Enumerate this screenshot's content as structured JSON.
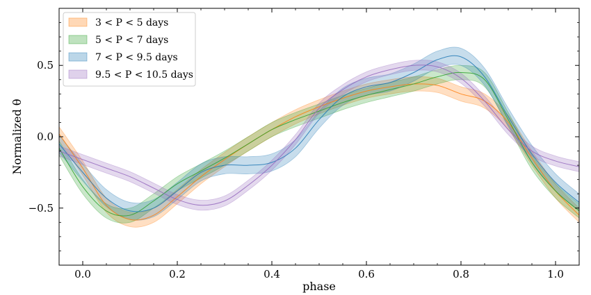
{
  "chart_data": {
    "type": "line",
    "xlabel": "phase",
    "ylabel": "Normalized θ",
    "xlim": [
      -0.05,
      1.05
    ],
    "ylim": [
      -0.9,
      0.9
    ],
    "xticks": [
      "0.0",
      "0.2",
      "0.4",
      "0.6",
      "0.8",
      "1.0"
    ],
    "yticks": [
      "−0.5",
      "0.0",
      "0.5"
    ],
    "grid": false,
    "legend_position": "top-left",
    "series": [
      {
        "name": "3 < P < 5 days",
        "color": "#ff7f0e",
        "x": [
          -0.05,
          0.0,
          0.05,
          0.1,
          0.15,
          0.2,
          0.25,
          0.3,
          0.35,
          0.4,
          0.45,
          0.5,
          0.55,
          0.6,
          0.65,
          0.7,
          0.75,
          0.8,
          0.85,
          0.9,
          0.95,
          1.0,
          1.05
        ],
        "y": [
          0.02,
          -0.22,
          -0.48,
          -0.58,
          -0.55,
          -0.42,
          -0.28,
          -0.16,
          -0.05,
          0.05,
          0.14,
          0.21,
          0.27,
          0.32,
          0.35,
          0.37,
          0.36,
          0.3,
          0.25,
          0.1,
          -0.15,
          -0.38,
          -0.55
        ],
        "band": 0.05
      },
      {
        "name": "5 < P < 7 days",
        "color": "#2ca02c",
        "x": [
          -0.05,
          0.0,
          0.05,
          0.1,
          0.15,
          0.2,
          0.25,
          0.3,
          0.35,
          0.4,
          0.45,
          0.5,
          0.55,
          0.6,
          0.65,
          0.7,
          0.75,
          0.8,
          0.85,
          0.9,
          0.95,
          1.0,
          1.05
        ],
        "y": [
          -0.08,
          -0.35,
          -0.52,
          -0.55,
          -0.45,
          -0.33,
          -0.24,
          -0.15,
          -0.05,
          0.05,
          0.12,
          0.18,
          0.24,
          0.29,
          0.33,
          0.37,
          0.42,
          0.45,
          0.4,
          0.12,
          -0.18,
          -0.38,
          -0.52
        ],
        "band": 0.05
      },
      {
        "name": "7 < P < 9.5 days",
        "color": "#1f77b4",
        "x": [
          -0.05,
          0.0,
          0.05,
          0.1,
          0.15,
          0.2,
          0.25,
          0.3,
          0.35,
          0.4,
          0.45,
          0.5,
          0.55,
          0.6,
          0.65,
          0.7,
          0.75,
          0.8,
          0.85,
          0.9,
          0.95,
          1.0,
          1.05
        ],
        "y": [
          -0.05,
          -0.25,
          -0.43,
          -0.52,
          -0.5,
          -0.38,
          -0.25,
          -0.2,
          -0.2,
          -0.18,
          -0.08,
          0.12,
          0.28,
          0.35,
          0.38,
          0.45,
          0.54,
          0.56,
          0.42,
          0.14,
          -0.12,
          -0.32,
          -0.46
        ],
        "band": 0.06
      },
      {
        "name": "9.5 < P < 10.5 days",
        "color": "#9467bd",
        "x": [
          -0.05,
          0.0,
          0.05,
          0.1,
          0.15,
          0.2,
          0.25,
          0.3,
          0.35,
          0.4,
          0.45,
          0.5,
          0.55,
          0.6,
          0.65,
          0.7,
          0.75,
          0.8,
          0.85,
          0.9,
          0.95,
          1.0,
          1.05
        ],
        "y": [
          -0.1,
          -0.16,
          -0.22,
          -0.28,
          -0.36,
          -0.44,
          -0.48,
          -0.45,
          -0.34,
          -0.2,
          -0.02,
          0.2,
          0.33,
          0.42,
          0.47,
          0.5,
          0.49,
          0.41,
          0.25,
          0.05,
          -0.1,
          -0.17,
          -0.21
        ],
        "band": 0.035
      }
    ]
  }
}
